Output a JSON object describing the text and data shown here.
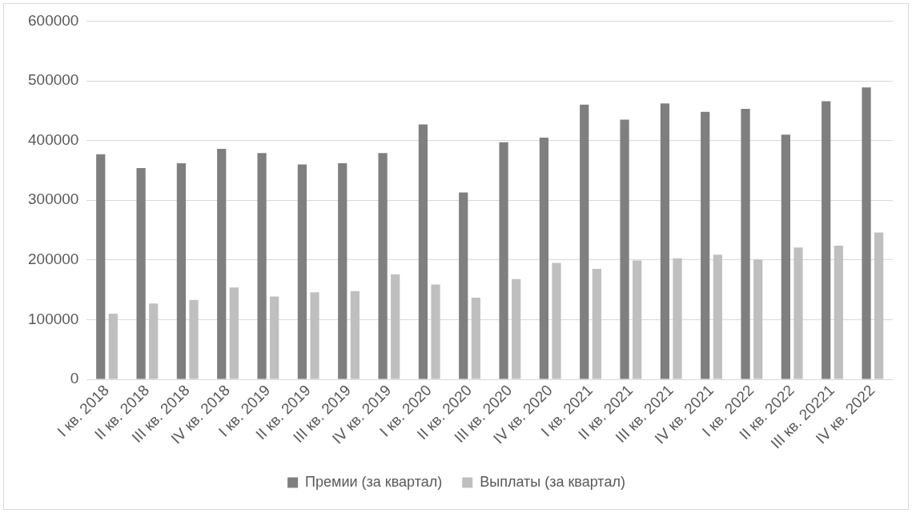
{
  "chart_data": {
    "type": "bar",
    "categories": [
      "I кв. 2018",
      "II кв. 2018",
      "III кв. 2018",
      "IV кв. 2018",
      "I кв. 2019",
      "II кв. 2019",
      "III кв. 2019",
      "IV кв. 2019",
      "I кв. 2020",
      "II кв. 2020",
      "III кв. 2020",
      "IV кв. 2020",
      "I кв. 2021",
      "II кв. 2021",
      "III кв. 2021",
      "IV кв. 2021",
      "I кв. 2022",
      "II кв. 2022",
      "III кв. 20221",
      "IV кв. 2022"
    ],
    "series": [
      {
        "name": "Премии (за квартал)",
        "color": "#7f7f7f",
        "values": [
          377000,
          354000,
          362000,
          386000,
          379000,
          360000,
          362000,
          379000,
          427000,
          313000,
          397000,
          405000,
          460000,
          435000,
          462000,
          448000,
          453000,
          410000,
          466000,
          489000
        ]
      },
      {
        "name": "Выплаты (за квартал)",
        "color": "#bfbfbf",
        "values": [
          110000,
          127000,
          133000,
          154000,
          139000,
          146000,
          148000,
          176000,
          159000,
          137000,
          168000,
          195000,
          185000,
          199000,
          203000,
          209000,
          201000,
          221000,
          224000,
          246000
        ]
      }
    ],
    "ylim": [
      0,
      600000
    ],
    "yticks": [
      0,
      100000,
      200000,
      300000,
      400000,
      500000,
      600000
    ],
    "grid": "y",
    "legend": "bottom"
  }
}
